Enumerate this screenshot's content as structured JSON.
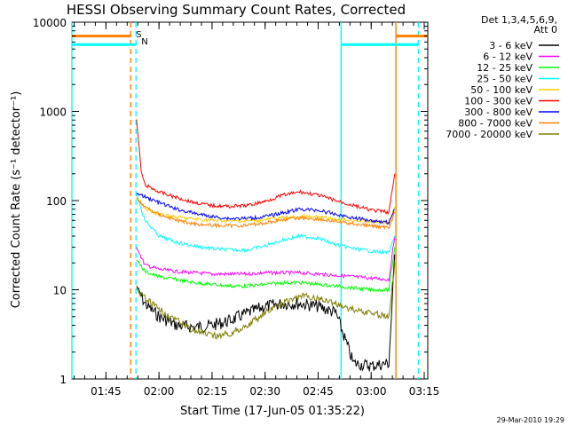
{
  "chart_data": {
    "type": "line",
    "title": "HESSI Observing Summary Count Rates, Corrected",
    "xlabel": "Start Time (17-Jun-05 01:35:22)",
    "ylabel": "Corrected Count Rate (s⁻¹ detector⁻¹)",
    "yscale": "log",
    "ylim": [
      1,
      10000
    ],
    "xlim": [
      "01:35:22",
      "03:16:00"
    ],
    "x_ticks": [
      "01:45",
      "02:00",
      "02:15",
      "02:30",
      "02:45",
      "03:00",
      "03:15"
    ],
    "y_ticks": [
      "1",
      "10",
      "100",
      "1000",
      "10000"
    ],
    "legend_header": [
      "Det 1,3,4,5,6,9,",
      "Att 0"
    ],
    "legend_position": "right-outside-top",
    "footer_date": "29-Mar-2010 19:29",
    "flags": [
      {
        "label": "S",
        "color": "#ff7f00"
      },
      {
        "label": "N",
        "color": "#00ffff"
      }
    ],
    "vertical_markers": [
      {
        "time": "01:35:22",
        "color": "#00ffff",
        "style": "solid"
      },
      {
        "time": "01:52:00",
        "color": "#ff7f00",
        "style": "dashed"
      },
      {
        "time": "01:53:30",
        "color": "#00ffff",
        "style": "dashed"
      },
      {
        "time": "02:51:30",
        "color": "#00ffff",
        "style": "solid"
      },
      {
        "time": "03:07:00",
        "color": "#ff7f00",
        "style": "solid"
      },
      {
        "time": "03:13:20",
        "color": "#00ffff",
        "style": "dashed"
      }
    ],
    "flag_bars": [
      {
        "color": "#ff7f00",
        "value": 7000,
        "segments": [
          [
            "01:35:22",
            "01:52:00"
          ],
          [
            "03:07:00",
            "03:16:00"
          ]
        ]
      },
      {
        "color": "#00ffff",
        "value": 5600,
        "segments": [
          [
            "01:35:22",
            "01:53:30"
          ],
          [
            "02:51:30",
            "03:13:20"
          ]
        ]
      }
    ],
    "series": [
      {
        "name": "3 - 6 keV",
        "color": "#000000",
        "x": [
          "01:53:40",
          "01:56:00",
          "02:00:00",
          "02:05:00",
          "02:10:00",
          "02:15:00",
          "02:20:00",
          "02:25:00",
          "02:30:00",
          "02:35:00",
          "02:40:00",
          "02:45:00",
          "02:50:00",
          "02:55:00",
          "03:00:00",
          "03:05:00",
          "03:06:40"
        ],
        "y": [
          11,
          7,
          5,
          4,
          3.8,
          4,
          4.5,
          5.5,
          6.5,
          7,
          7,
          6.5,
          5.5,
          1.5,
          1.4,
          1.5,
          25
        ]
      },
      {
        "name": "6 - 12 keV",
        "color": "#ff00ff",
        "x": [
          "01:53:40",
          "01:56:00",
          "02:00:00",
          "02:05:00",
          "02:10:00",
          "02:15:00",
          "02:20:00",
          "02:25:00",
          "02:30:00",
          "02:35:00",
          "02:40:00",
          "02:45:00",
          "02:50:00",
          "02:55:00",
          "03:00:00",
          "03:05:00",
          "03:06:40"
        ],
        "y": [
          30,
          19,
          17,
          16,
          15.5,
          15,
          15,
          15,
          15.5,
          15.5,
          15.5,
          15,
          14.5,
          14,
          13.5,
          13,
          40
        ]
      },
      {
        "name": "12 - 25 keV",
        "color": "#00ff00",
        "x": [
          "01:53:40",
          "01:56:00",
          "02:00:00",
          "02:05:00",
          "02:10:00",
          "02:15:00",
          "02:20:00",
          "02:25:00",
          "02:30:00",
          "02:35:00",
          "02:40:00",
          "02:45:00",
          "02:50:00",
          "02:55:00",
          "03:00:00",
          "03:05:00",
          "03:06:40"
        ],
        "y": [
          22,
          16,
          14,
          13,
          12,
          11.5,
          11,
          11,
          11.5,
          12,
          12,
          11.5,
          11,
          10.5,
          10,
          10,
          30
        ]
      },
      {
        "name": "25 - 50 keV",
        "color": "#00ffff",
        "x": [
          "01:53:40",
          "01:56:00",
          "02:00:00",
          "02:05:00",
          "02:10:00",
          "02:15:00",
          "02:20:00",
          "02:25:00",
          "02:30:00",
          "02:35:00",
          "02:40:00",
          "02:45:00",
          "02:50:00",
          "02:55:00",
          "03:00:00",
          "03:05:00",
          "03:06:40"
        ],
        "y": [
          120,
          60,
          40,
          34,
          31,
          29,
          28,
          28,
          31,
          36,
          40,
          38,
          32,
          29,
          27,
          26,
          40
        ]
      },
      {
        "name": "50 - 100 keV",
        "color": "#ffcc00",
        "x": [
          "01:53:40",
          "01:56:00",
          "02:00:00",
          "02:05:00",
          "02:10:00",
          "02:15:00",
          "02:20:00",
          "02:25:00",
          "02:30:00",
          "02:35:00",
          "02:40:00",
          "02:45:00",
          "02:50:00",
          "02:55:00",
          "03:00:00",
          "03:05:00",
          "03:06:40"
        ],
        "y": [
          110,
          80,
          70,
          65,
          62,
          60,
          59,
          59,
          61,
          64,
          66,
          65,
          62,
          60,
          58,
          56,
          85
        ]
      },
      {
        "name": "100 - 300 keV",
        "color": "#ff0000",
        "x": [
          "01:53:40",
          "01:55:00",
          "01:56:00",
          "02:00:00",
          "02:05:00",
          "02:10:00",
          "02:15:00",
          "02:20:00",
          "02:25:00",
          "02:30:00",
          "02:35:00",
          "02:40:00",
          "02:45:00",
          "02:50:00",
          "02:55:00",
          "03:00:00",
          "03:05:00",
          "03:06:40"
        ],
        "y": [
          800,
          210,
          150,
          125,
          108,
          95,
          88,
          86,
          88,
          98,
          115,
          125,
          115,
          100,
          88,
          78,
          74,
          200
        ]
      },
      {
        "name": "300 - 800 keV",
        "color": "#0000ff",
        "x": [
          "01:53:40",
          "01:56:00",
          "02:00:00",
          "02:05:00",
          "02:10:00",
          "02:15:00",
          "02:20:00",
          "02:25:00",
          "02:30:00",
          "02:35:00",
          "02:40:00",
          "02:45:00",
          "02:50:00",
          "02:55:00",
          "03:00:00",
          "03:05:00",
          "03:06:40"
        ],
        "y": [
          120,
          110,
          95,
          80,
          72,
          66,
          63,
          63,
          66,
          73,
          80,
          78,
          70,
          64,
          60,
          57,
          80
        ]
      },
      {
        "name": "800 - 7000 keV",
        "color": "#ff7f00",
        "x": [
          "01:53:40",
          "01:56:00",
          "02:00:00",
          "02:05:00",
          "02:10:00",
          "02:15:00",
          "02:20:00",
          "02:25:00",
          "02:30:00",
          "02:35:00",
          "02:40:00",
          "02:45:00",
          "02:50:00",
          "02:55:00",
          "03:00:00",
          "03:05:00",
          "03:06:40"
        ],
        "y": [
          105,
          85,
          70,
          60,
          55,
          53,
          52,
          53,
          56,
          61,
          64,
          62,
          58,
          55,
          52,
          50,
          75
        ]
      },
      {
        "name": "7000 - 20000 keV",
        "color": "#7f7f00",
        "x": [
          "01:53:40",
          "01:56:00",
          "02:00:00",
          "02:05:00",
          "02:10:00",
          "02:15:00",
          "02:20:00",
          "02:25:00",
          "02:30:00",
          "02:35:00",
          "02:40:00",
          "02:45:00",
          "02:50:00",
          "02:55:00",
          "03:00:00",
          "03:05:00",
          "03:06:40"
        ],
        "y": [
          10,
          8,
          6,
          4.5,
          3.5,
          3,
          3.2,
          4,
          5.5,
          7,
          8.5,
          8,
          7,
          6,
          5.5,
          5,
          20
        ]
      }
    ]
  }
}
